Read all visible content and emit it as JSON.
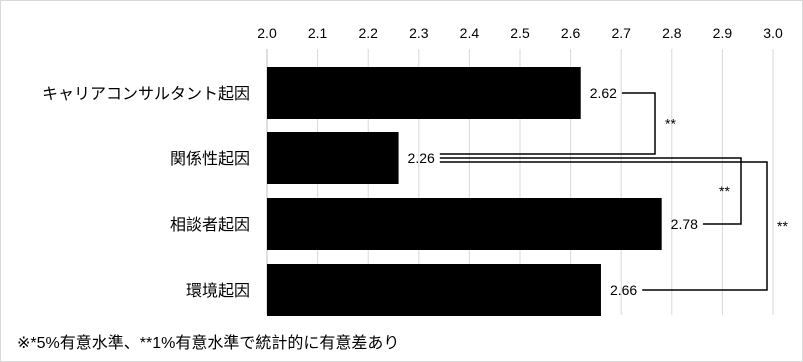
{
  "chart_data": {
    "type": "bar",
    "orientation": "horizontal",
    "categories": [
      "キャリアコンサルタント起因",
      "関係性起因",
      "相談者起因",
      "環境起因"
    ],
    "values": [
      2.62,
      2.26,
      2.78,
      2.66
    ],
    "value_labels": [
      "2.62",
      "2.26",
      "2.78",
      "2.66"
    ],
    "xlim": [
      2.0,
      3.0
    ],
    "x_ticks": [
      "2.0",
      "2.1",
      "2.2",
      "2.3",
      "2.4",
      "2.5",
      "2.6",
      "2.7",
      "2.8",
      "2.9",
      "3.0"
    ],
    "x_axis_position": "top",
    "grid": true,
    "bar_color": "#000000",
    "significance": [
      {
        "from": 0,
        "to": 1,
        "label": "**"
      },
      {
        "from": 1,
        "to": 2,
        "label": "**"
      },
      {
        "from": 1,
        "to": 3,
        "label": "**"
      }
    ]
  },
  "footnote": "※*5%有意水準、**1%有意水準で統計的に有意差あり"
}
